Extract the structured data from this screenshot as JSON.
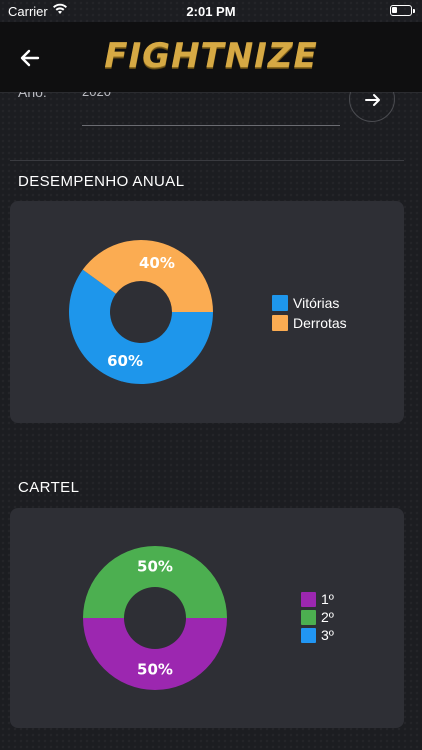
{
  "status_bar": {
    "carrier": "Carrier",
    "time": "2:01 PM"
  },
  "header": {
    "logo_text": "FIGHTNIZE"
  },
  "filter": {
    "year_label": "Ano:",
    "year_value": "2020"
  },
  "sections": {
    "annual": {
      "title": "DESEMPENHO ANUAL"
    },
    "record": {
      "title": "CARTEL"
    }
  },
  "chart_data": [
    {
      "type": "pie",
      "style": "donut",
      "categories": [
        "Vitórias",
        "Derrotas"
      ],
      "values": [
        60,
        40
      ],
      "labels": [
        "60%",
        "40%"
      ],
      "colors": [
        "#1e96eb",
        "#fbac52"
      ],
      "legend_position": "right"
    },
    {
      "type": "pie",
      "style": "donut",
      "categories": [
        "1º",
        "2º",
        "3º"
      ],
      "values": [
        50,
        50,
        0
      ],
      "labels": [
        "50%",
        "50%",
        ""
      ],
      "colors": [
        "#9c27b0",
        "#4caf50",
        "#2196f3"
      ],
      "legend_position": "right"
    }
  ]
}
